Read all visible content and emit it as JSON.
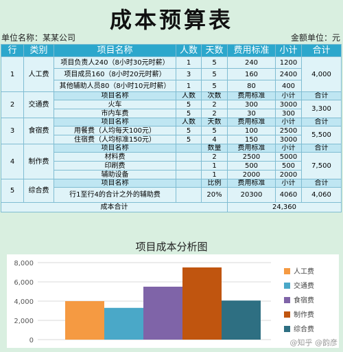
{
  "title": "成本预算表",
  "unit_left": "单位名称：某某公司",
  "unit_right": "金额单位：元",
  "headers": [
    "行",
    "类别",
    "项目名称",
    "人数",
    "天数",
    "费用标准",
    "小计",
    "合计"
  ],
  "g1": {
    "idx": "1",
    "cat": "人工费",
    "total": "4,000",
    "rows": [
      [
        "项目负责人240（8小时30元时薪）",
        "1",
        "5",
        "240",
        "1200"
      ],
      [
        "项目成员160（8小时20元时薪）",
        "3",
        "5",
        "160",
        "2400"
      ],
      [
        "其他辅助人员80（8小时10元时薪）",
        "1",
        "5",
        "80",
        "400"
      ]
    ]
  },
  "g2": {
    "idx": "2",
    "cat": "交通费",
    "total": "3,300",
    "sub": [
      "项目名称",
      "人数",
      "次数",
      "费用标准",
      "小计",
      "合计"
    ],
    "rows": [
      [
        "火车",
        "5",
        "2",
        "300",
        "3000"
      ],
      [
        "市内车费",
        "5",
        "2",
        "30",
        "300"
      ]
    ]
  },
  "g3": {
    "idx": "3",
    "cat": "食宿费",
    "total": "5,500",
    "sub": [
      "项目名称",
      "人数",
      "天数",
      "费用标准",
      "小计",
      "合计"
    ],
    "rows": [
      [
        "用餐费（人均每天100元）",
        "5",
        "5",
        "100",
        "2500"
      ],
      [
        "住宿费（人均标准150元）",
        "5",
        "4",
        "150",
        "3000"
      ]
    ]
  },
  "g4": {
    "idx": "4",
    "cat": "制作费",
    "total": "7,500",
    "sub": [
      "项目名称",
      "",
      "数量",
      "费用标准",
      "小计",
      "合计"
    ],
    "rows": [
      [
        "材料费",
        "",
        "2",
        "2500",
        "5000"
      ],
      [
        "印刷费",
        "",
        "1",
        "500",
        "500"
      ],
      [
        "辅助设备",
        "",
        "1",
        "2000",
        "2000"
      ]
    ]
  },
  "g5": {
    "idx": "5",
    "cat": "综合费",
    "total": "4,060",
    "sub": [
      "项目名称",
      "",
      "比例",
      "费用标准",
      "小计",
      "合计"
    ],
    "rows": [
      [
        "行1至行4的合计之外的辅助费",
        "",
        "20%",
        "20300",
        "4060"
      ]
    ]
  },
  "grand": {
    "label": "成本合计",
    "value": "24,360"
  },
  "chart_title": "项目成本分析图",
  "watermark": "@知乎 @韵彦",
  "chart_data": {
    "type": "bar",
    "title": "项目成本分析图",
    "categories": [
      "人工费",
      "交通费",
      "食宿费",
      "制作费",
      "综合费"
    ],
    "values": [
      4000,
      3300,
      5500,
      7500,
      4060
    ],
    "colors": [
      "#f59a42",
      "#4aa8c8",
      "#7f64a8",
      "#c0550f",
      "#2e6f82"
    ],
    "ylim": [
      0,
      8000
    ],
    "yticks": [
      "0",
      "2,000",
      "4,000",
      "6,000",
      "8,000"
    ],
    "grid": true,
    "legend": "right"
  }
}
